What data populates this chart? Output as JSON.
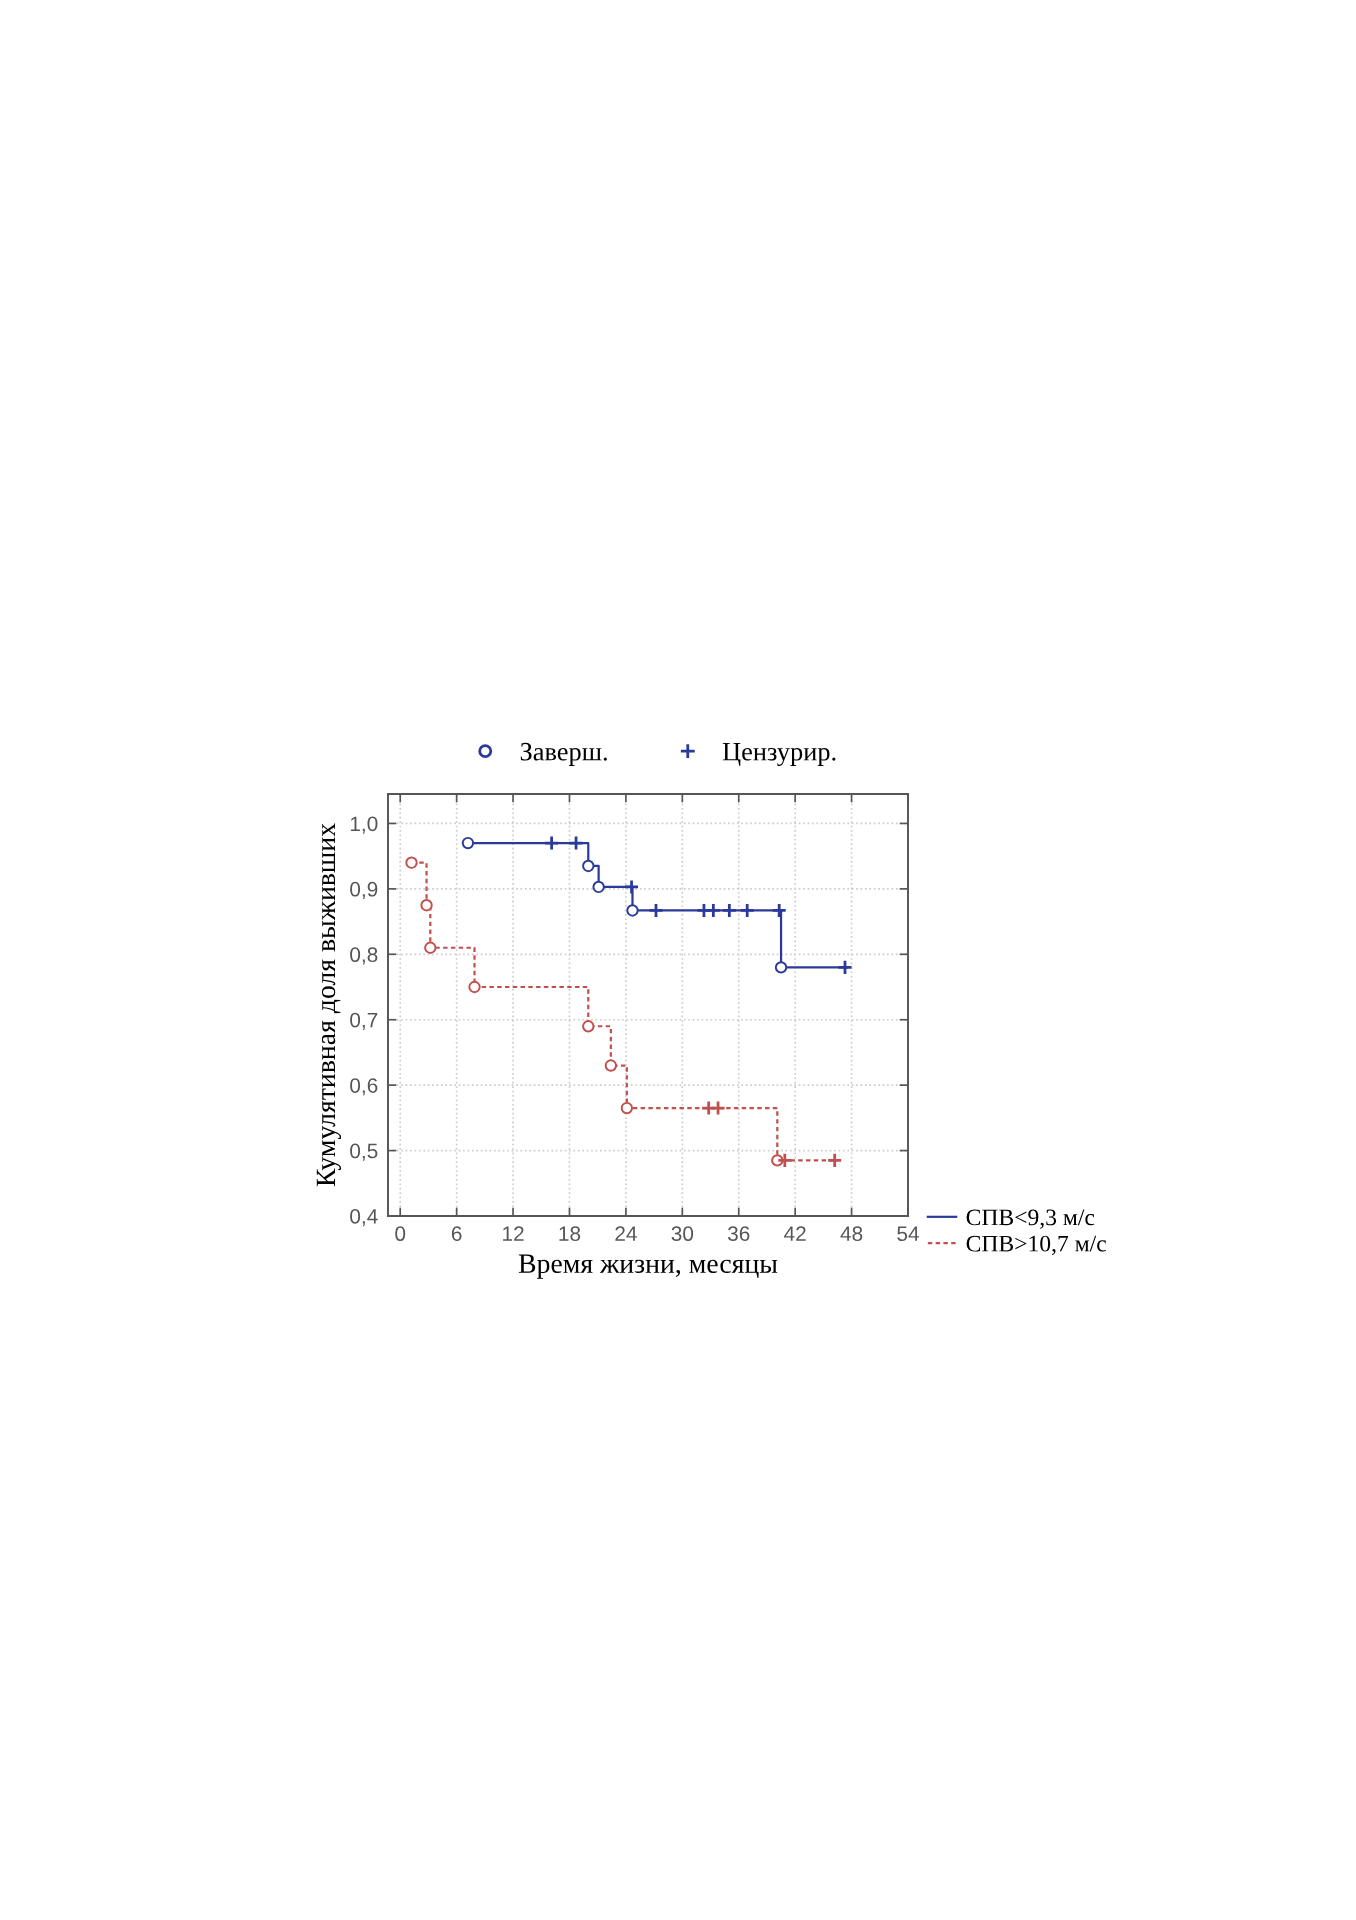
{
  "chart_data": {
    "type": "step",
    "xlabel": "Время жизни, месяцы",
    "ylabel": "Кумулятивная доля выживших",
    "xlim": [
      -1.3,
      54
    ],
    "xticks": [
      0,
      6,
      12,
      18,
      24,
      30,
      36,
      42,
      48,
      54
    ],
    "ylim": [
      0.4,
      1.045
    ],
    "yticks": [
      {
        "value": 0.4,
        "label": "0,4"
      },
      {
        "value": 0.5,
        "label": "0,5"
      },
      {
        "value": 0.6,
        "label": "0,6"
      },
      {
        "value": 0.7,
        "label": "0,7"
      },
      {
        "value": 0.8,
        "label": "0,8"
      },
      {
        "value": 0.9,
        "label": "0,9"
      },
      {
        "value": 1.0,
        "label": "1,0"
      }
    ],
    "grid": true,
    "legend": "top",
    "series": [
      {
        "name": "СПВ<9,3 м/с",
        "color": "#2b3a9a",
        "line_style": "solid",
        "x": [
          7.2,
          20.0,
          21.1,
          24.7,
          40.5,
          47.5
        ],
        "values": [
          0.97,
          0.935,
          0.903,
          0.867,
          0.78,
          0.78
        ]
      },
      {
        "name": "СПВ>10,7 м/с",
        "color": "#c0504d",
        "line_style": "dashed",
        "x": [
          1.2,
          2.8,
          3.2,
          7.9,
          20.0,
          22.4,
          24.1,
          40.1,
          46.2
        ],
        "values": [
          0.94,
          0.875,
          0.81,
          0.75,
          0.69,
          0.63,
          0.565,
          0.485,
          0.485
        ]
      },
      {
        "type": "scatter",
        "name": "Заверш.",
        "color": "#2b3a9a",
        "marker": "circle",
        "x": [
          7.2,
          20.0,
          21.1,
          24.7,
          40.5
        ],
        "values": [
          0.97,
          0.935,
          0.903,
          0.867,
          0.78
        ]
      },
      {
        "type": "scatter",
        "color": "#c0504d",
        "marker": "circle",
        "x": [
          1.2,
          2.8,
          3.2,
          7.9,
          20.0,
          22.4,
          24.1,
          40.1
        ],
        "values": [
          0.94,
          0.875,
          0.81,
          0.75,
          0.69,
          0.63,
          0.565,
          0.485
        ]
      },
      {
        "type": "scatter",
        "name": "Цензурир.",
        "color": "#2b3a9a",
        "marker": "cross",
        "x": [
          16.1,
          18.7,
          24.6,
          27.2,
          32.3,
          33.3,
          35.0,
          36.9,
          40.3,
          47.3
        ],
        "values": [
          0.97,
          0.97,
          0.903,
          0.867,
          0.867,
          0.867,
          0.867,
          0.867,
          0.867,
          0.78
        ]
      },
      {
        "type": "scatter",
        "color": "#c0504d",
        "marker": "cross",
        "x": [
          32.8,
          33.8,
          40.9,
          46.2
        ],
        "values": [
          0.565,
          0.565,
          0.485,
          0.485
        ]
      }
    ]
  }
}
